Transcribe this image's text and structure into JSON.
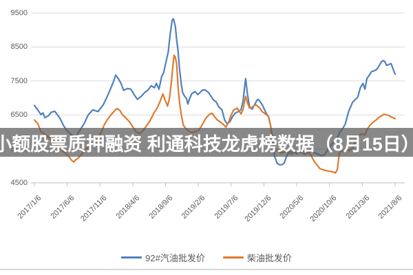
{
  "banner": {
    "text": "小额股票质押融资 利通科技龙虎榜数据（8月15日）"
  },
  "colors": {
    "series_blue": "#4E81BD",
    "series_orange": "#DD7A2E",
    "gridline": "#D9D9D9",
    "axis": "#BFBFBF",
    "tick_text": "#595959",
    "banner_bg": "rgba(90,90,90,0.72)",
    "banner_text": "#FFFFFF",
    "background": "#FFFFFF"
  },
  "chart_data": {
    "type": "line",
    "title": "",
    "xlabel": "",
    "ylabel": "",
    "grid": "horizontal",
    "legend_position": "bottom",
    "y_axis": {
      "min": 4500,
      "max": 9500,
      "tick_step": 1000,
      "ticks": [
        9500,
        8500,
        7500,
        6500,
        5500,
        4500
      ]
    },
    "x_axis": {
      "tick_labels": [
        "2017/1/6",
        "2017/6/6",
        "2017/11/6",
        "2018/4/6",
        "2018/9/6",
        "2019/2/6",
        "2019/7/6",
        "2019/12/6",
        "2020/5/6",
        "2020/10/6",
        "2021/3/6",
        "2021/8/6"
      ],
      "tick_month_index": [
        0,
        5,
        10,
        15,
        20,
        25,
        30,
        35,
        40,
        45,
        50,
        55
      ],
      "domain_months": [
        0,
        55
      ]
    },
    "series": [
      {
        "name": "92#汽油批发价",
        "color": "#4E81BD",
        "points": [
          [
            0,
            6780
          ],
          [
            0.5,
            6650
          ],
          [
            1,
            6510
          ],
          [
            1.3,
            6560
          ],
          [
            1.6,
            6420
          ],
          [
            2.1,
            6470
          ],
          [
            2.6,
            6580
          ],
          [
            3.1,
            6610
          ],
          [
            3.9,
            6400
          ],
          [
            4.4,
            6200
          ],
          [
            4.9,
            6050
          ],
          [
            5.8,
            5880
          ],
          [
            6.3,
            5850
          ],
          [
            6.8,
            6010
          ],
          [
            7.6,
            6250
          ],
          [
            8.2,
            6500
          ],
          [
            8.9,
            6650
          ],
          [
            9.7,
            6600
          ],
          [
            10.5,
            6800
          ],
          [
            11,
            7000
          ],
          [
            11.5,
            7225
          ],
          [
            12,
            7450
          ],
          [
            12.4,
            7675
          ],
          [
            12.8,
            7570
          ],
          [
            13.2,
            7430
          ],
          [
            13.6,
            7225
          ],
          [
            14.2,
            7280
          ],
          [
            14.7,
            7260
          ],
          [
            15.2,
            7100
          ],
          [
            15.7,
            6960
          ],
          [
            16.3,
            7050
          ],
          [
            16.8,
            7160
          ],
          [
            17.3,
            7230
          ],
          [
            17.8,
            7360
          ],
          [
            18.3,
            7300
          ],
          [
            18.6,
            7430
          ],
          [
            19,
            7260
          ],
          [
            19.4,
            7630
          ],
          [
            19.7,
            7740
          ],
          [
            20,
            8000
          ],
          [
            20.4,
            8350
          ],
          [
            20.7,
            8870
          ],
          [
            21,
            9290
          ],
          [
            21.2,
            9330
          ],
          [
            21.5,
            9100
          ],
          [
            21.7,
            8700
          ],
          [
            21.9,
            8400
          ],
          [
            22.1,
            7900
          ],
          [
            22.4,
            7400
          ],
          [
            22.6,
            7160
          ],
          [
            22.9,
            7050
          ],
          [
            23.2,
            6980
          ],
          [
            23.4,
            6820
          ],
          [
            23.7,
            7000
          ],
          [
            24,
            7130
          ],
          [
            24.5,
            7190
          ],
          [
            24.9,
            7100
          ],
          [
            25.2,
            7150
          ],
          [
            25.6,
            7230
          ],
          [
            26,
            7240
          ],
          [
            26.5,
            7170
          ],
          [
            26.9,
            7060
          ],
          [
            27.3,
            6940
          ],
          [
            27.7,
            6890
          ],
          [
            28.1,
            6740
          ],
          [
            28.6,
            6650
          ],
          [
            29,
            6350
          ],
          [
            29.4,
            6240
          ],
          [
            29.8,
            6300
          ],
          [
            30.2,
            6450
          ],
          [
            30.6,
            6550
          ],
          [
            31.1,
            6600
          ],
          [
            31.5,
            6650
          ],
          [
            31.8,
            6900
          ],
          [
            32.2,
            7570
          ],
          [
            32.5,
            7100
          ],
          [
            32.8,
            6750
          ],
          [
            33.2,
            6670
          ],
          [
            33.5,
            6780
          ],
          [
            33.9,
            6920
          ],
          [
            34.1,
            6960
          ],
          [
            34.4,
            6900
          ],
          [
            34.8,
            6780
          ],
          [
            35.1,
            6650
          ],
          [
            35.4,
            6530
          ],
          [
            35.7,
            6450
          ],
          [
            36,
            6200
          ],
          [
            36.3,
            5800
          ],
          [
            36.6,
            5300
          ],
          [
            37,
            5080
          ],
          [
            37.4,
            5030
          ],
          [
            37.8,
            5040
          ],
          [
            38.1,
            5090
          ],
          [
            38.4,
            5250
          ],
          [
            38.7,
            5380
          ],
          [
            39.2,
            5350
          ],
          [
            39.6,
            5400
          ],
          [
            40,
            5360
          ],
          [
            40.4,
            5420
          ],
          [
            40.8,
            5380
          ],
          [
            41.3,
            5340
          ],
          [
            41.7,
            5400
          ],
          [
            42.1,
            5430
          ],
          [
            42.5,
            5400
          ],
          [
            42.9,
            5370
          ],
          [
            43.3,
            5340
          ],
          [
            43.7,
            5300
          ],
          [
            44.2,
            5320
          ],
          [
            44.6,
            5430
          ],
          [
            45,
            5550
          ],
          [
            45.4,
            5650
          ],
          [
            45.9,
            5740
          ],
          [
            46.2,
            5840
          ],
          [
            46.6,
            6000
          ],
          [
            47,
            6100
          ],
          [
            47.4,
            6230
          ],
          [
            47.9,
            6600
          ],
          [
            48.5,
            6870
          ],
          [
            48.9,
            6950
          ],
          [
            49.3,
            7020
          ],
          [
            49.7,
            7300
          ],
          [
            50.1,
            7430
          ],
          [
            50.4,
            7260
          ],
          [
            50.7,
            7570
          ],
          [
            51.1,
            7680
          ],
          [
            51.4,
            7775
          ],
          [
            51.8,
            7800
          ],
          [
            52.2,
            7840
          ],
          [
            52.5,
            7930
          ],
          [
            52.8,
            8030
          ],
          [
            53.1,
            8100
          ],
          [
            53.4,
            8080
          ],
          [
            53.7,
            7960
          ],
          [
            54.1,
            7990
          ],
          [
            54.4,
            8010
          ],
          [
            54.7,
            7850
          ],
          [
            55,
            7700
          ]
        ]
      },
      {
        "name": "柴油批发价",
        "color": "#DD7A2E",
        "points": [
          [
            0,
            6350
          ],
          [
            0.5,
            6250
          ],
          [
            1,
            6010
          ],
          [
            1.6,
            5940
          ],
          [
            2.1,
            5850
          ],
          [
            2.6,
            5760
          ],
          [
            3.1,
            5660
          ],
          [
            3.7,
            5560
          ],
          [
            4.2,
            5460
          ],
          [
            4.7,
            5380
          ],
          [
            5.2,
            5290
          ],
          [
            5.7,
            5160
          ],
          [
            6,
            5115
          ],
          [
            6.3,
            5180
          ],
          [
            6.7,
            5230
          ],
          [
            7.1,
            5320
          ],
          [
            7.8,
            5480
          ],
          [
            8.4,
            5590
          ],
          [
            9,
            5700
          ],
          [
            9.7,
            5800
          ],
          [
            10.2,
            6000
          ],
          [
            10.7,
            6230
          ],
          [
            11.2,
            6380
          ],
          [
            11.7,
            6510
          ],
          [
            12.2,
            6620
          ],
          [
            12.6,
            6690
          ],
          [
            13,
            6640
          ],
          [
            13.4,
            6510
          ],
          [
            14,
            6400
          ],
          [
            14.5,
            6300
          ],
          [
            15,
            6150
          ],
          [
            15.5,
            6000
          ],
          [
            16.1,
            5950
          ],
          [
            16.6,
            6050
          ],
          [
            17.1,
            6180
          ],
          [
            17.6,
            6320
          ],
          [
            18.2,
            6550
          ],
          [
            18.7,
            6700
          ],
          [
            19.1,
            6870
          ],
          [
            19.4,
            7020
          ],
          [
            19.6,
            7120
          ],
          [
            19.9,
            6950
          ],
          [
            20.3,
            6760
          ],
          [
            20.6,
            7000
          ],
          [
            20.9,
            7500
          ],
          [
            21.1,
            7900
          ],
          [
            21.3,
            8260
          ],
          [
            21.5,
            8200
          ],
          [
            21.7,
            7980
          ],
          [
            21.9,
            7360
          ],
          [
            22.1,
            6900
          ],
          [
            22.4,
            6500
          ],
          [
            22.7,
            6200
          ],
          [
            23,
            6120
          ],
          [
            23.3,
            6060
          ],
          [
            23.7,
            6000
          ],
          [
            24.1,
            5980
          ],
          [
            24.6,
            6010
          ],
          [
            25,
            6040
          ],
          [
            25.4,
            6150
          ],
          [
            25.8,
            6290
          ],
          [
            26.2,
            6420
          ],
          [
            26.7,
            6520
          ],
          [
            27.1,
            6550
          ],
          [
            27.5,
            6440
          ],
          [
            27.9,
            6350
          ],
          [
            28.3,
            6300
          ],
          [
            28.8,
            6220
          ],
          [
            29.2,
            6140
          ],
          [
            29.6,
            6280
          ],
          [
            30,
            6500
          ],
          [
            30.4,
            6650
          ],
          [
            30.9,
            6700
          ],
          [
            31.2,
            6620
          ],
          [
            31.5,
            6530
          ],
          [
            31.8,
            6650
          ],
          [
            32.2,
            7050
          ],
          [
            32.5,
            6850
          ],
          [
            32.8,
            6700
          ],
          [
            33.2,
            6720
          ],
          [
            33.5,
            6780
          ],
          [
            33.8,
            6800
          ],
          [
            34.1,
            6750
          ],
          [
            34.4,
            6700
          ],
          [
            34.7,
            6600
          ],
          [
            35.1,
            6550
          ],
          [
            35.4,
            6500
          ],
          [
            35.7,
            6450
          ],
          [
            36,
            6200
          ],
          [
            36.3,
            5800
          ],
          [
            36.7,
            5500
          ],
          [
            37.2,
            5420
          ],
          [
            37.6,
            5380
          ],
          [
            38,
            5400
          ],
          [
            38.4,
            5430
          ],
          [
            38.8,
            5400
          ],
          [
            39.3,
            5420
          ],
          [
            39.7,
            5440
          ],
          [
            40.1,
            5420
          ],
          [
            40.5,
            5400
          ],
          [
            40.9,
            5430
          ],
          [
            41.4,
            5410
          ],
          [
            41.8,
            5390
          ],
          [
            42.2,
            5300
          ],
          [
            42.6,
            5150
          ],
          [
            43,
            5050
          ],
          [
            43.5,
            4930
          ],
          [
            43.9,
            4890
          ],
          [
            44.3,
            4870
          ],
          [
            44.7,
            4850
          ],
          [
            45.1,
            4840
          ],
          [
            45.6,
            4820
          ],
          [
            45.9,
            4790
          ],
          [
            46.2,
            4900
          ],
          [
            46.5,
            5380
          ],
          [
            46.8,
            5440
          ],
          [
            47.2,
            5450
          ],
          [
            47.7,
            5470
          ],
          [
            48.1,
            5450
          ],
          [
            48.5,
            5520
          ],
          [
            48.9,
            5700
          ],
          [
            49.3,
            5830
          ],
          [
            49.7,
            5930
          ],
          [
            50.1,
            5940
          ],
          [
            50.4,
            5910
          ],
          [
            50.8,
            6100
          ],
          [
            51.2,
            6200
          ],
          [
            51.6,
            6280
          ],
          [
            52.1,
            6350
          ],
          [
            52.5,
            6430
          ],
          [
            52.9,
            6470
          ],
          [
            53.3,
            6520
          ],
          [
            53.7,
            6500
          ],
          [
            54,
            6490
          ],
          [
            54.3,
            6450
          ],
          [
            54.7,
            6420
          ],
          [
            55,
            6390
          ]
        ]
      }
    ]
  }
}
